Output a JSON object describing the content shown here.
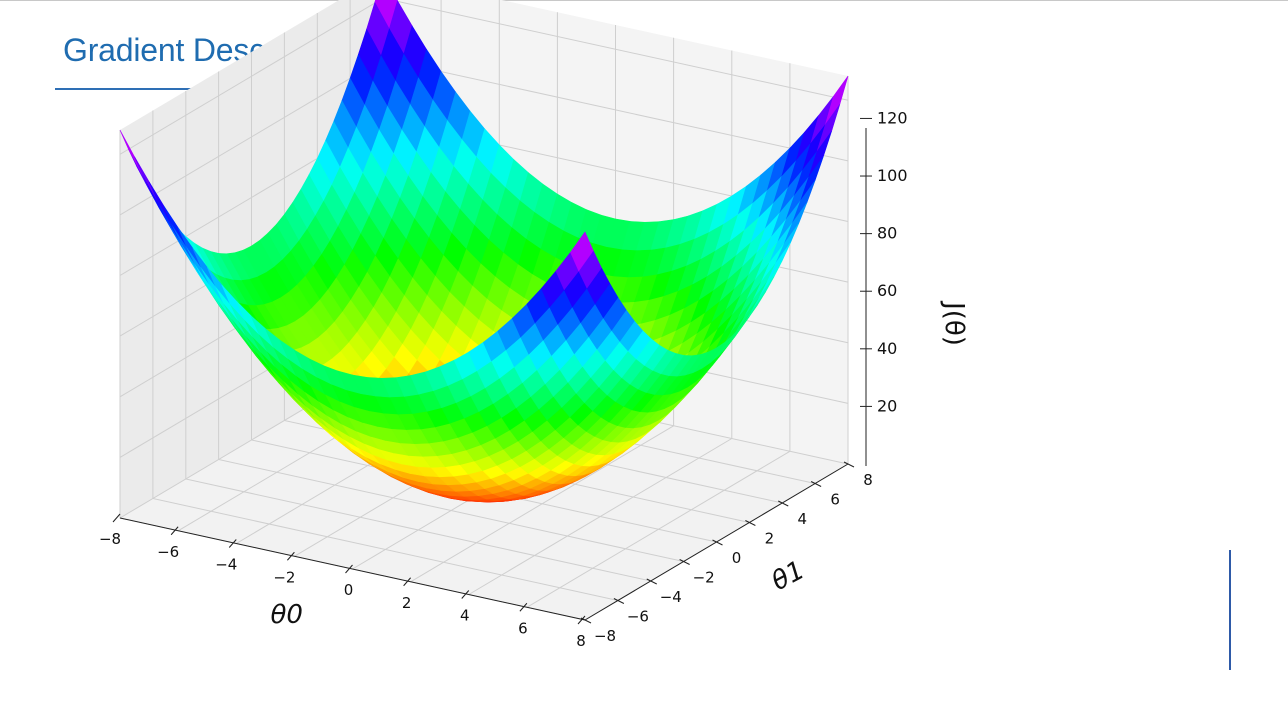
{
  "slide": {
    "title": "Gradient Descent Algorithm"
  },
  "chart_data": {
    "type": "surface3d",
    "function": "J(theta0, theta1) = theta0^2 + theta1^2 (paraboloid)",
    "colormap": "gist_rainbow",
    "x": {
      "label": "θ0",
      "range": [
        -8,
        8
      ],
      "ticks": [
        -8,
        -6,
        -4,
        -2,
        0,
        2,
        4,
        6,
        8
      ],
      "tick_labels": [
        "−8",
        "−6",
        "−4",
        "−2",
        "0",
        "2",
        "4",
        "6",
        "8"
      ]
    },
    "y": {
      "label": "θ1",
      "range": [
        -8,
        8
      ],
      "ticks": [
        -8,
        -6,
        -4,
        -2,
        0,
        2,
        4,
        6,
        8
      ],
      "tick_labels": [
        "−8",
        "−6",
        "−4",
        "−2",
        "0",
        "2",
        "4",
        "6",
        "8"
      ]
    },
    "z": {
      "label": "J(θ)",
      "range": [
        0,
        128
      ],
      "ticks": [
        20,
        40,
        60,
        80,
        100,
        120
      ],
      "tick_labels": [
        "20",
        "40",
        "60",
        "80",
        "100",
        "120"
      ]
    },
    "corner_values": [
      {
        "theta0": -8,
        "theta1": -8,
        "J": 128
      },
      {
        "theta0": -8,
        "theta1": 8,
        "J": 128
      },
      {
        "theta0": 8,
        "theta1": -8,
        "J": 128
      },
      {
        "theta0": 8,
        "theta1": 8,
        "J": 128
      }
    ],
    "minimum": {
      "theta0": 0,
      "theta1": 0,
      "J": 0
    },
    "grid": true,
    "colors": {
      "pane": "#f2f2f2",
      "grid": "#cfcfcf",
      "title": "#1f6cb0"
    }
  }
}
